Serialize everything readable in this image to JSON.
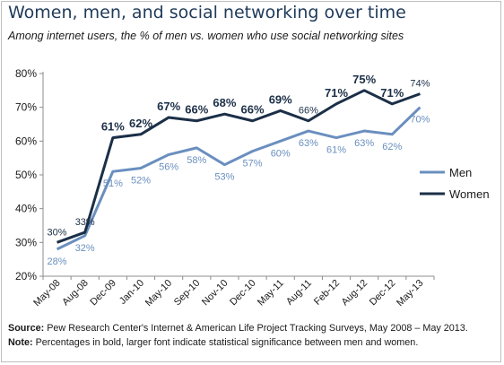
{
  "chart_data": {
    "type": "line",
    "title": "Women, men, and social networking over time",
    "subtitle": "Among internet users, the % of men vs. women who use social networking sites",
    "categories": [
      "May-08",
      "Aug-08",
      "Dec-09",
      "Jan-10",
      "May-10",
      "Sep-10",
      "Nov-10",
      "Dec-10",
      "May-11",
      "Aug-11",
      "Feb-12",
      "Aug-12",
      "Dec-12",
      "May-13"
    ],
    "ylim": [
      20,
      80
    ],
    "yticks": [
      "20%",
      "30%",
      "40%",
      "50%",
      "60%",
      "70%",
      "80%"
    ],
    "grid": false,
    "legend": "right",
    "series": [
      {
        "name": "Men",
        "color": "#6a8fbf",
        "values": [
          28,
          32,
          51,
          52,
          56,
          58,
          53,
          57,
          60,
          63,
          61,
          63,
          62,
          70
        ],
        "labels": [
          "28%",
          "32%",
          "51%",
          "52%",
          "56%",
          "58%",
          "53%",
          "57%",
          "60%",
          "63%",
          "61%",
          "63%",
          "62%",
          "70%"
        ],
        "label_position": "below"
      },
      {
        "name": "Women",
        "color": "#1b2f47",
        "values": [
          30,
          33,
          61,
          62,
          67,
          66,
          68,
          66,
          69,
          66,
          71,
          75,
          71,
          74
        ],
        "labels": [
          "30%",
          "33%",
          "61%",
          "62%",
          "67%",
          "66%",
          "68%",
          "66%",
          "69%",
          "66%",
          "71%",
          "75%",
          "71%",
          "74%"
        ],
        "bold": [
          false,
          false,
          true,
          true,
          true,
          true,
          true,
          true,
          true,
          false,
          true,
          true,
          true,
          false
        ],
        "label_position": "above"
      }
    ]
  },
  "footer": {
    "source_label": "Source:",
    "source_text": "Pew Research Center's Internet & American Life Project Tracking Surveys, May 2008 – May 2013.",
    "note_label": "Note:",
    "note_text": "Percentages in bold, larger font indicate statistical significance between men and women."
  }
}
